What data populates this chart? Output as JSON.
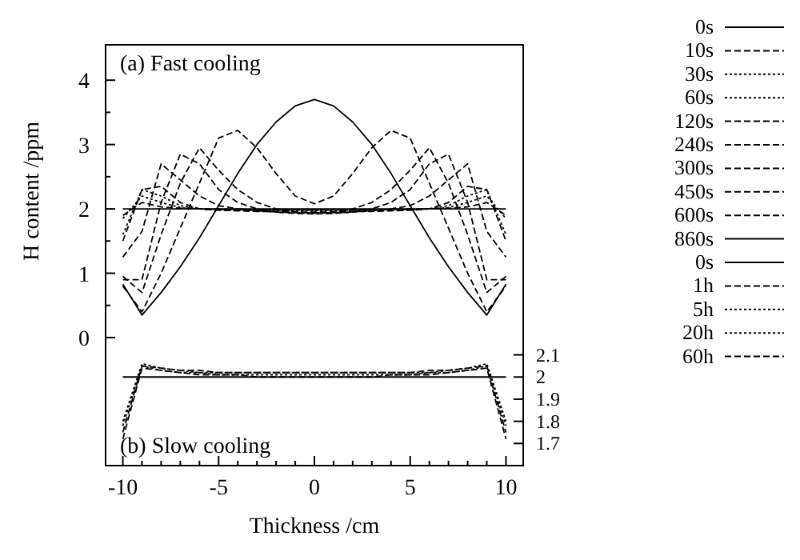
{
  "chart_data": {
    "type": "line",
    "xlabel": "Thickness /cm",
    "ylabel": "H content /ppm",
    "annotations": [
      "(a) Fast cooling",
      "(b) Slow cooling"
    ],
    "x": [
      -10,
      -9,
      -8,
      -7,
      -6,
      -5,
      -4,
      -3,
      -2,
      -1,
      0,
      1,
      2,
      3,
      4,
      5,
      6,
      7,
      8,
      9,
      10
    ],
    "xlim": [
      -10.9,
      10.9
    ],
    "xticks": [
      -10,
      {
        "value": -9,
        "label": null
      },
      {
        "value": -8,
        "label": null
      },
      {
        "value": -7,
        "label": null
      },
      {
        "value": -6,
        "label": null
      },
      -5,
      {
        "value": -4,
        "label": null
      },
      {
        "value": -3,
        "label": null
      },
      {
        "value": -2,
        "label": null
      },
      {
        "value": -1,
        "label": null
      },
      0,
      {
        "value": 1,
        "label": null
      },
      {
        "value": 2,
        "label": null
      },
      {
        "value": 3,
        "label": null
      },
      {
        "value": 4,
        "label": null
      },
      5,
      {
        "value": 6,
        "label": null
      },
      {
        "value": 7,
        "label": null
      },
      {
        "value": 8,
        "label": null
      },
      {
        "value": 9,
        "label": null
      },
      10
    ],
    "ylim": [
      -1.99,
      4.55
    ],
    "yticks": [
      0,
      {
        "value": 0.5,
        "label": null
      },
      1,
      {
        "value": 1.5,
        "label": null
      },
      2,
      {
        "value": 2.5,
        "label": null
      },
      3,
      {
        "value": 3.5,
        "label": null
      },
      4
    ],
    "y2lim": [
      1.6,
      3.5
    ],
    "y2ticks": [
      1.7,
      1.8,
      1.9,
      2,
      2.1
    ],
    "legend": "right",
    "grid": false,
    "series": [
      {
        "name": "0s",
        "color": "#000000",
        "line_style": "solid",
        "values": [
          2,
          2,
          2,
          2,
          2,
          2,
          2,
          2,
          2,
          2,
          2,
          2,
          2,
          2,
          2,
          2,
          2,
          2,
          2,
          2,
          2
        ]
      },
      {
        "name": "10s",
        "color": "#000000",
        "line_style": "dashed",
        "values": [
          1.9,
          2.1,
          2.03,
          2.01,
          2.0,
          2.0,
          1.99,
          1.99,
          1.99,
          1.99,
          1.99,
          1.99,
          1.99,
          1.99,
          1.99,
          2.0,
          2.0,
          2.01,
          2.03,
          2.1,
          1.9
        ]
      },
      {
        "name": "30s",
        "color": "#000000",
        "line_style": "dotted",
        "values": [
          1.85,
          2.2,
          2.1,
          2.02,
          2.0,
          1.99,
          1.99,
          1.98,
          1.98,
          1.98,
          1.98,
          1.98,
          1.98,
          1.98,
          1.99,
          1.99,
          2.0,
          2.02,
          2.1,
          2.2,
          1.85
        ]
      },
      {
        "name": "60s",
        "color": "#000000",
        "line_style": "dotted",
        "values": [
          1.6,
          2.3,
          2.2,
          2.05,
          2.0,
          1.98,
          1.98,
          1.97,
          1.97,
          1.97,
          1.97,
          1.97,
          1.97,
          1.97,
          1.98,
          1.98,
          2.0,
          2.05,
          2.2,
          2.3,
          1.6
        ]
      },
      {
        "name": "120s",
        "color": "#000000",
        "line_style": "dashed",
        "values": [
          1.5,
          2.3,
          2.35,
          2.1,
          2.0,
          1.98,
          1.97,
          1.96,
          1.96,
          1.95,
          1.95,
          1.95,
          1.96,
          1.96,
          1.97,
          1.98,
          2.0,
          2.1,
          2.35,
          2.3,
          1.5
        ]
      },
      {
        "name": "240s",
        "color": "#000000",
        "line_style": "dashed",
        "values": [
          1.25,
          1.65,
          2.7,
          2.45,
          2.2,
          2.05,
          2.0,
          1.97,
          1.95,
          1.94,
          1.94,
          1.94,
          1.95,
          1.97,
          2.0,
          2.05,
          2.2,
          2.45,
          2.7,
          1.65,
          1.25
        ]
      },
      {
        "name": "300s",
        "color": "#000000",
        "line_style": "dashed",
        "values": [
          0.9,
          0.9,
          2.1,
          2.85,
          2.7,
          2.3,
          2.1,
          2.0,
          1.95,
          1.93,
          1.92,
          1.93,
          1.95,
          2.0,
          2.1,
          2.3,
          2.7,
          2.85,
          2.1,
          0.9,
          0.9
        ]
      },
      {
        "name": "450s",
        "color": "#000000",
        "line_style": "dashed",
        "values": [
          0.95,
          0.7,
          1.6,
          2.4,
          2.95,
          2.6,
          2.3,
          2.1,
          2.0,
          1.95,
          1.93,
          1.95,
          2.0,
          2.1,
          2.3,
          2.6,
          2.95,
          2.4,
          1.6,
          0.7,
          0.95
        ]
      },
      {
        "name": "600s",
        "color": "#000000",
        "line_style": "dashed",
        "values": [
          0.8,
          0.4,
          1.0,
          1.7,
          2.4,
          3.1,
          3.22,
          2.95,
          2.55,
          2.2,
          2.08,
          2.2,
          2.55,
          2.95,
          3.22,
          3.1,
          2.4,
          1.7,
          1.0,
          0.4,
          0.8
        ]
      },
      {
        "name": "860s",
        "color": "#000000",
        "line_style": "solid",
        "values": [
          0.83,
          0.35,
          0.7,
          1.1,
          1.55,
          2.05,
          2.55,
          3.0,
          3.35,
          3.6,
          3.7,
          3.6,
          3.35,
          3.0,
          2.55,
          2.05,
          1.55,
          1.1,
          0.7,
          0.35,
          0.83
        ]
      },
      {
        "name": "0s",
        "color": "#000000",
        "line_style": "solid",
        "axis": "y2",
        "values": [
          2,
          2,
          2,
          2,
          2,
          2,
          2,
          2,
          2,
          2,
          2,
          2,
          2,
          2,
          2,
          2,
          2,
          2,
          2,
          2,
          2
        ]
      },
      {
        "name": "1h",
        "color": "#000000",
        "line_style": "dashed",
        "axis": "y2",
        "values": [
          1.75,
          2.05,
          2.04,
          2.03,
          2.03,
          2.02,
          2.02,
          2.02,
          2.02,
          2.02,
          2.02,
          2.02,
          2.02,
          2.02,
          2.02,
          2.02,
          2.03,
          2.03,
          2.04,
          2.05,
          1.75
        ]
      },
      {
        "name": "5h",
        "color": "#000000",
        "line_style": "dotted",
        "axis": "y2",
        "values": [
          1.8,
          2.06,
          2.04,
          2.03,
          2.02,
          2.02,
          2.02,
          2.02,
          2.02,
          2.02,
          2.02,
          2.02,
          2.02,
          2.02,
          2.02,
          2.02,
          2.02,
          2.03,
          2.04,
          2.06,
          1.8
        ]
      },
      {
        "name": "20h",
        "color": "#000000",
        "line_style": "dotted",
        "axis": "y2",
        "values": [
          1.78,
          2.05,
          2.03,
          2.02,
          2.02,
          2.01,
          2.01,
          2.01,
          2.01,
          2.01,
          2.01,
          2.01,
          2.01,
          2.01,
          2.01,
          2.01,
          2.02,
          2.02,
          2.03,
          2.05,
          1.78
        ]
      },
      {
        "name": "60h",
        "color": "#000000",
        "line_style": "dashed",
        "axis": "y2",
        "values": [
          1.72,
          2.04,
          2.03,
          2.02,
          2.01,
          2.01,
          2.01,
          2.0,
          2.0,
          2.0,
          2.0,
          2.0,
          2.0,
          2.0,
          2.01,
          2.01,
          2.01,
          2.02,
          2.03,
          2.04,
          1.72
        ]
      }
    ]
  }
}
